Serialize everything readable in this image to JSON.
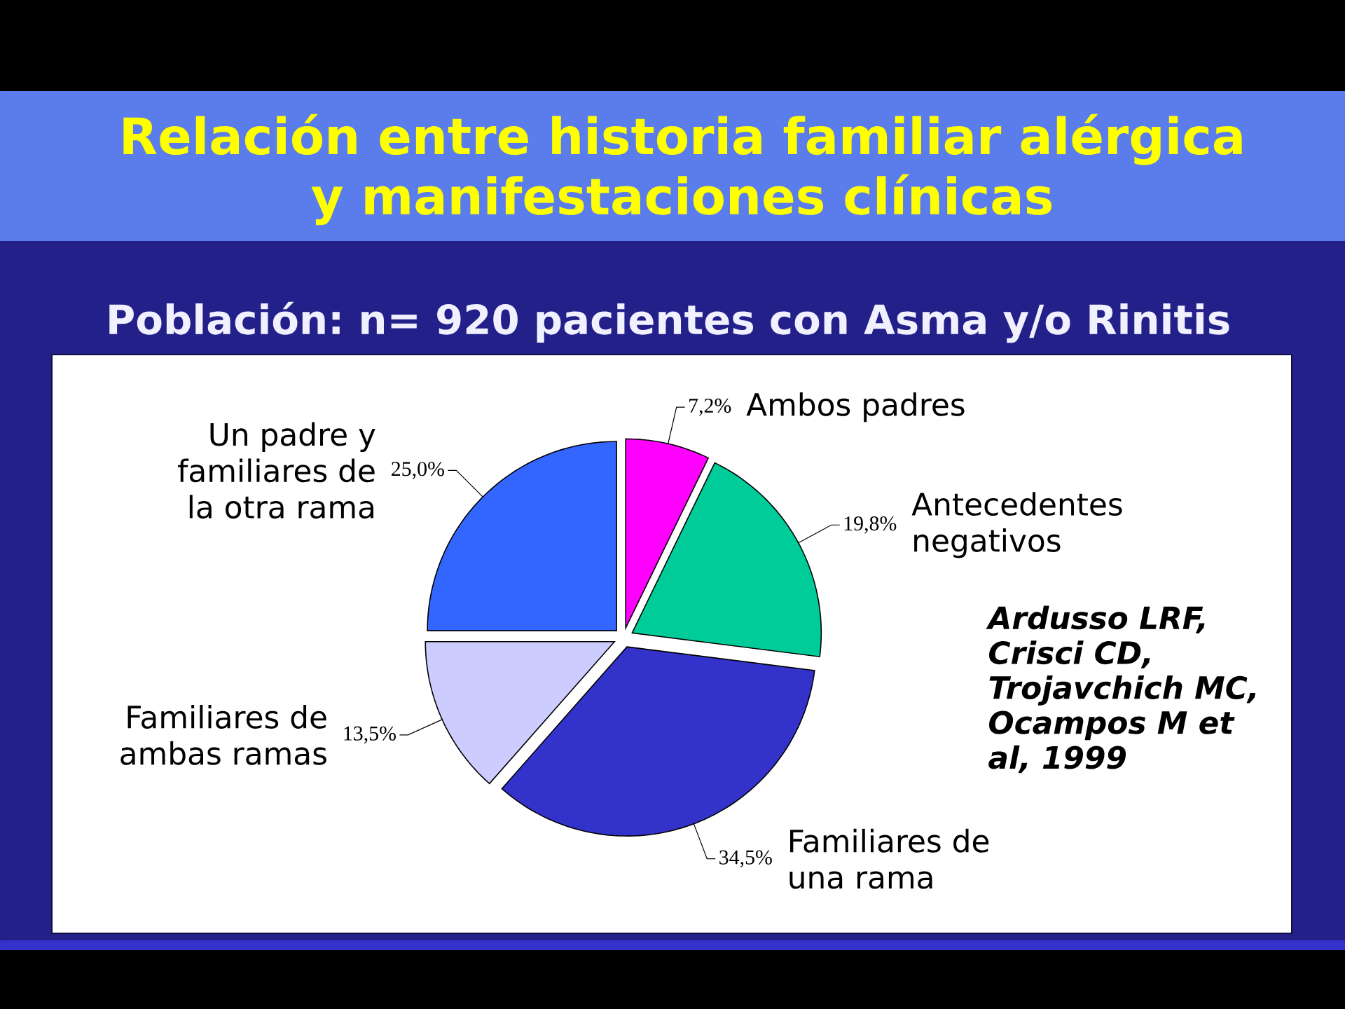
{
  "chart_data": {
    "type": "pie",
    "title": "Relación entre historia familiar alérgica y manifestaciones clínicas",
    "subtitle": "Población: n= 920 pacientes con Asma y/o Rinitis",
    "categories": [
      "Ambos padres",
      "Antecedentes negativos",
      "Familiares de una rama",
      "Familiares de ambas ramas",
      "Un padre y familiares de la otra rama"
    ],
    "values": [
      7.2,
      19.8,
      34.5,
      13.5,
      25.0
    ],
    "value_labels": [
      "7,2%",
      "19,8%",
      "34,5%",
      "13,5%",
      "25,0%"
    ],
    "colors": [
      "#ff00ff",
      "#00cc99",
      "#3333cc",
      "#ccccff",
      "#3366ff"
    ],
    "annotations": [
      "Ardusso LRF, Crisci CD, Trojavchich MC, Ocampos M et al, 1999"
    ]
  }
}
